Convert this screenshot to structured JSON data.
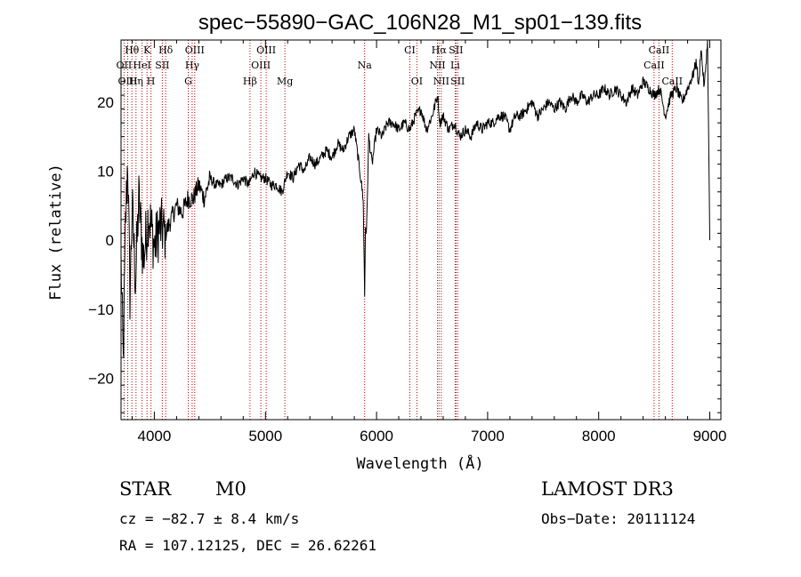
{
  "chart_data": {
    "type": "line",
    "title": "spec−55890−GAC_106N28_M1_sp01−139.fits",
    "xlabel": "Wavelength (Å)",
    "ylabel": "Flux (relative)",
    "xlim": [
      3700,
      9100
    ],
    "ylim": [
      -26,
      29
    ],
    "xticks": [
      4000,
      5000,
      6000,
      7000,
      8000,
      9000
    ],
    "yticks": [
      -20,
      -10,
      0,
      10,
      20
    ],
    "ytick_labels": [
      "−20",
      "−10",
      "0",
      "10",
      "20"
    ],
    "spectrum": {
      "x": [
        3700,
        3720,
        3740,
        3760,
        3780,
        3800,
        3830,
        3860,
        3900,
        3950,
        4000,
        4050,
        4100,
        4150,
        4200,
        4250,
        4300,
        4350,
        4400,
        4450,
        4500,
        4550,
        4600,
        4650,
        4700,
        4750,
        4800,
        4850,
        4900,
        4950,
        5000,
        5050,
        5100,
        5150,
        5200,
        5250,
        5300,
        5350,
        5400,
        5450,
        5500,
        5550,
        5600,
        5650,
        5700,
        5750,
        5800,
        5850,
        5880,
        5893,
        5900,
        5910,
        5930,
        5960,
        6000,
        6050,
        6100,
        6150,
        6200,
        6250,
        6300,
        6350,
        6400,
        6450,
        6500,
        6550,
        6570,
        6600,
        6650,
        6700,
        6750,
        6800,
        6850,
        6900,
        6950,
        7000,
        7050,
        7100,
        7150,
        7200,
        7250,
        7300,
        7350,
        7400,
        7450,
        7500,
        7550,
        7600,
        7650,
        7700,
        7750,
        7800,
        7850,
        7900,
        7950,
        8000,
        8050,
        8100,
        8150,
        8200,
        8250,
        8300,
        8350,
        8400,
        8450,
        8500,
        8550,
        8600,
        8650,
        8700,
        8750,
        8800,
        8850,
        8880,
        8900,
        8920,
        8950,
        8980,
        9000
      ],
      "y": [
        -3,
        -18,
        2,
        12,
        -8,
        5,
        -6,
        6,
        -3,
        4,
        -1,
        2,
        1,
        3,
        5,
        4,
        6,
        6,
        8,
        6,
        9,
        8,
        8,
        9,
        9,
        8,
        9,
        8,
        10,
        9,
        9,
        8,
        8,
        7,
        10,
        9,
        11,
        10,
        12,
        11,
        12,
        13,
        12,
        14,
        13,
        15,
        16,
        10,
        6,
        -8,
        2,
        1,
        15,
        11,
        16,
        15,
        17,
        17,
        16,
        17,
        16,
        18,
        19,
        16,
        18,
        21,
        17,
        18,
        16,
        17,
        15,
        16,
        15,
        17,
        16,
        17,
        17,
        18,
        18,
        16,
        18,
        18,
        19,
        20,
        18,
        19,
        20,
        19,
        20,
        19,
        21,
        20,
        21,
        20,
        21,
        21,
        22,
        21,
        22,
        21,
        20,
        22,
        21,
        23,
        22,
        21,
        22,
        18,
        21,
        22,
        20,
        22,
        24,
        26,
        22,
        28,
        22,
        29,
        0
      ]
    },
    "series_name": "relative flux",
    "line_labels": [
      {
        "text": "Hθ",
        "row": 1,
        "wl": 3798
      },
      {
        "text": "K",
        "row": 1,
        "wl": 3934
      },
      {
        "text": "Hδ",
        "row": 1,
        "wl": 4102
      },
      {
        "text": "OIII",
        "row": 1,
        "wl": 4363
      },
      {
        "text": "OIII",
        "row": 1,
        "wl": 5007
      },
      {
        "text": "CI",
        "row": 1,
        "wl": 6300
      },
      {
        "text": "Hα",
        "row": 1,
        "wl": 6563
      },
      {
        "text": "SII",
        "row": 1,
        "wl": 6716
      },
      {
        "text": "CaII",
        "row": 1,
        "wl": 8542
      },
      {
        "text": "OII",
        "row": 2,
        "wl": 3727
      },
      {
        "text": "HeI",
        "row": 2,
        "wl": 3889
      },
      {
        "text": "SII",
        "row": 2,
        "wl": 4072
      },
      {
        "text": "Hγ",
        "row": 2,
        "wl": 4340
      },
      {
        "text": "OIII",
        "row": 2,
        "wl": 4959
      },
      {
        "text": "Na",
        "row": 2,
        "wl": 5893
      },
      {
        "text": "NII",
        "row": 2,
        "wl": 6548
      },
      {
        "text": "Li",
        "row": 2,
        "wl": 6708
      },
      {
        "text": "CaII",
        "row": 2,
        "wl": 8498
      },
      {
        "text": "OIII",
        "row": 3,
        "wl": 3760
      },
      {
        "text": "Hη",
        "row": 3,
        "wl": 3835
      },
      {
        "text": "H",
        "row": 3,
        "wl": 3969
      },
      {
        "text": "G",
        "row": 3,
        "wl": 4305
      },
      {
        "text": "Hβ",
        "row": 3,
        "wl": 4861
      },
      {
        "text": "Mg",
        "row": 3,
        "wl": 5175
      },
      {
        "text": "OI",
        "row": 3,
        "wl": 6363
      },
      {
        "text": "NII",
        "row": 3,
        "wl": 6583
      },
      {
        "text": "SII",
        "row": 3,
        "wl": 6731
      },
      {
        "text": "CaII",
        "row": 3,
        "wl": 8662
      }
    ],
    "marker_wavelengths": [
      3727,
      3760,
      3798,
      3835,
      3889,
      3934,
      3969,
      4072,
      4102,
      4305,
      4340,
      4363,
      4861,
      4959,
      5007,
      5175,
      5893,
      6300,
      6363,
      6548,
      6563,
      6583,
      6708,
      6716,
      6731,
      8498,
      8542,
      8662
    ],
    "colors": {
      "spectrum": "#000000",
      "markers": "#c00000",
      "axes": "#000000"
    }
  },
  "info": {
    "class": "STAR",
    "subclass": "M0",
    "survey": "LAMOST DR3",
    "cz": "cz = −82.7 ± 8.4 km/s",
    "obs_date": "Obs−Date: 20111124",
    "coords": "RA = 107.12125, DEC =  26.62261"
  }
}
